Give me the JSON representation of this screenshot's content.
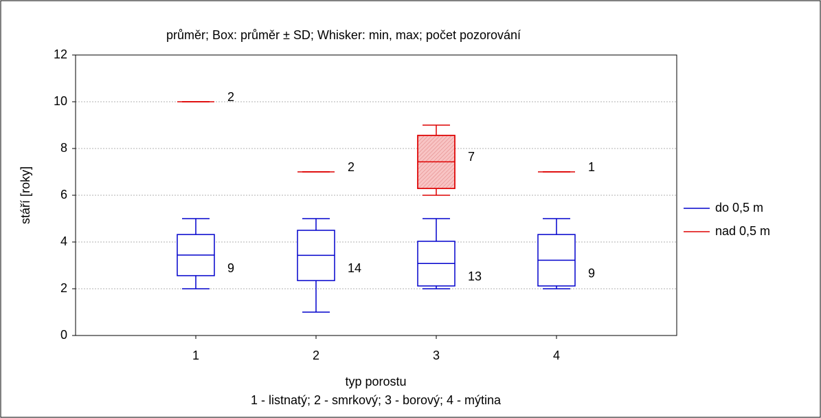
{
  "chart_data": {
    "type": "box",
    "title": "průměr;  Box: průměr ± SD;  Whisker: min, max; počet pozorování",
    "y_label": "stáří [roky]",
    "x_label": "typ porostu",
    "x_note": "1 - listnatý; 2 - smrkový; 3 - borový; 4 - mýtina",
    "categories": [
      "1",
      "2",
      "3",
      "4"
    ],
    "ylim": [
      0,
      12
    ],
    "yticks": [
      0,
      2,
      4,
      6,
      8,
      10,
      12
    ],
    "grid": true,
    "legend": "right",
    "series": [
      {
        "name": "do 0,5 m",
        "color": "#0000cc",
        "fill": "#ffffff",
        "mean": [
          3.44,
          3.43,
          3.08,
          3.22
        ],
        "box_low": [
          2.56,
          2.35,
          2.12,
          2.12
        ],
        "box_high": [
          4.32,
          4.5,
          4.03,
          4.32
        ],
        "min": [
          2,
          1,
          2,
          2
        ],
        "max": [
          5,
          5,
          5,
          5
        ],
        "n": [
          9,
          14,
          13,
          9
        ]
      },
      {
        "name": "nad 0,5 m",
        "color": "#dd0000",
        "fill": "#f8c4c4",
        "mean": [
          10,
          7,
          7.43,
          7
        ],
        "box_low": [
          10,
          7,
          6.29,
          7
        ],
        "box_high": [
          10,
          7,
          8.56,
          7
        ],
        "min": [
          10,
          7,
          6,
          7
        ],
        "max": [
          10,
          7,
          9,
          7
        ],
        "n": [
          2,
          2,
          7,
          1
        ]
      }
    ]
  }
}
